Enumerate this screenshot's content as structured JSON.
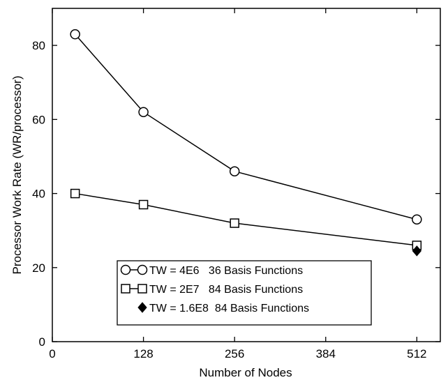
{
  "chart_data": {
    "type": "line",
    "title": "",
    "xlabel": "Number of Nodes",
    "ylabel": "Processor Work Rate (WR/processor)",
    "xlim": [
      0,
      545
    ],
    "ylim": [
      0,
      90
    ],
    "xticks": [
      0,
      128,
      256,
      384,
      512
    ],
    "yticks": [
      0,
      20,
      40,
      60,
      80
    ],
    "grid": false,
    "legend_position": "bottom-center",
    "series": [
      {
        "name": "TW = 4E6   36 Basis Functions",
        "marker": "open-circle",
        "line": true,
        "x": [
          32,
          128,
          256,
          512
        ],
        "y": [
          83,
          62,
          46,
          33
        ]
      },
      {
        "name": "TW = 2E7   84 Basis Functions",
        "marker": "open-square",
        "line": true,
        "x": [
          32,
          128,
          256,
          512
        ],
        "y": [
          40,
          37,
          32,
          26
        ]
      },
      {
        "name": "TW = 1.6E8  84 Basis Functions",
        "marker": "filled-diamond",
        "line": false,
        "x": [
          512
        ],
        "y": [
          24.5
        ]
      }
    ]
  }
}
